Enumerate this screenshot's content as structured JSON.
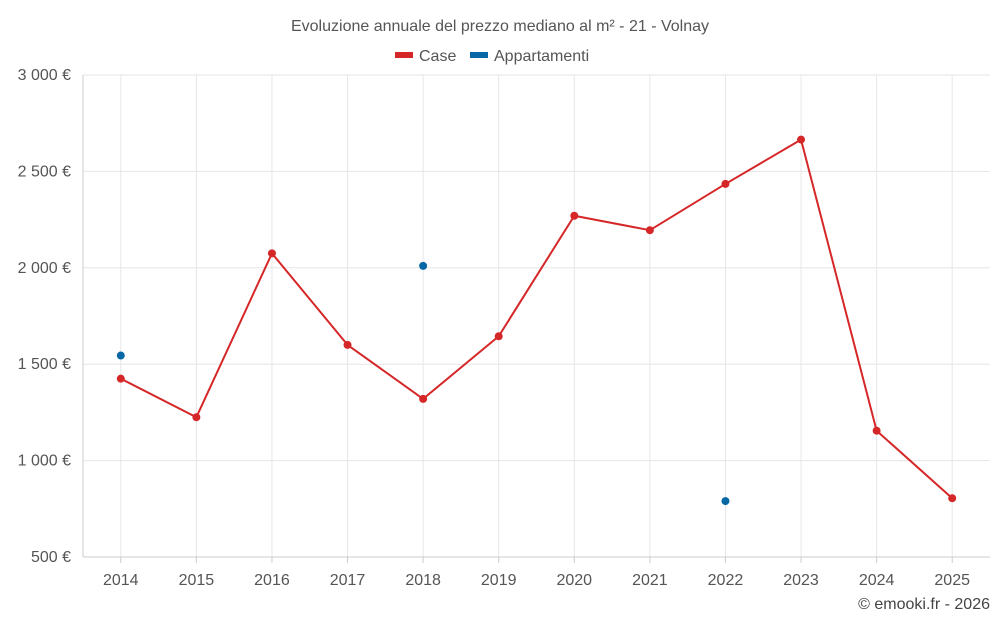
{
  "chart_data": {
    "type": "line",
    "title": "Evoluzione annuale del prezzo mediano al m² - 21 - Volnay",
    "categories": [
      "2014",
      "2015",
      "2016",
      "2017",
      "2018",
      "2019",
      "2020",
      "2021",
      "2022",
      "2023",
      "2024",
      "2025"
    ],
    "y_ticks": [
      500,
      1000,
      1500,
      2000,
      2500,
      3000
    ],
    "y_tick_labels": [
      "500 €",
      "1 000 €",
      "1 500 €",
      "2 000 €",
      "2 500 €",
      "3 000 €"
    ],
    "ylim": [
      500,
      3000
    ],
    "grid": true,
    "legend_position": "top-center",
    "series": [
      {
        "name": "Case",
        "color": "#d62728",
        "style": "line-with-markers",
        "values": [
          1425,
          1225,
          2075,
          1600,
          1320,
          1645,
          2270,
          2195,
          2435,
          2665,
          1155,
          805
        ]
      },
      {
        "name": "Appartamenti",
        "color": "#0868a6",
        "style": "markers-only",
        "values": [
          1545,
          null,
          null,
          null,
          2010,
          null,
          null,
          null,
          790,
          null,
          null,
          null
        ]
      }
    ]
  },
  "credit": "© emooki.fr - 2026"
}
